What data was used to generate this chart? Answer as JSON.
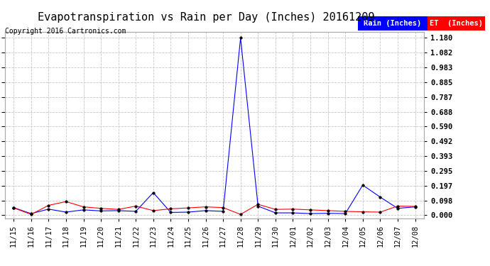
{
  "title": "Evapotranspiration vs Rain per Day (Inches) 20161209",
  "copyright": "Copyright 2016 Cartronics.com",
  "x_labels": [
    "11/15",
    "11/16",
    "11/17",
    "11/18",
    "11/19",
    "11/20",
    "11/21",
    "11/22",
    "11/23",
    "11/24",
    "11/25",
    "11/26",
    "11/27",
    "11/28",
    "11/29",
    "11/30",
    "12/01",
    "12/02",
    "12/03",
    "12/04",
    "12/05",
    "12/06",
    "12/07",
    "12/08"
  ],
  "rain_inches": [
    0.05,
    0.01,
    0.04,
    0.02,
    0.035,
    0.028,
    0.03,
    0.025,
    0.15,
    0.018,
    0.02,
    0.03,
    0.025,
    1.18,
    0.06,
    0.015,
    0.015,
    0.01,
    0.012,
    0.01,
    0.2,
    0.12,
    0.045,
    0.055
  ],
  "et_inches": [
    0.048,
    0.005,
    0.065,
    0.09,
    0.055,
    0.045,
    0.038,
    0.06,
    0.03,
    0.042,
    0.048,
    0.055,
    0.05,
    0.005,
    0.072,
    0.038,
    0.04,
    0.035,
    0.03,
    0.025,
    0.022,
    0.02,
    0.06,
    0.058
  ],
  "rain_color": "#0000ff",
  "et_color": "#ff0000",
  "bg_color": "#ffffff",
  "grid_color": "#c8c8c8",
  "yticks": [
    0.0,
    0.098,
    0.197,
    0.295,
    0.393,
    0.492,
    0.59,
    0.688,
    0.787,
    0.885,
    0.983,
    1.082,
    1.18
  ],
  "ylim": [
    -0.02,
    1.22
  ],
  "legend_rain_bg": "#0000ff",
  "legend_et_bg": "#ff0000",
  "legend_rain_text": "Rain (Inches)",
  "legend_et_text": "ET  (Inches)",
  "title_fontsize": 11,
  "copyright_fontsize": 7,
  "tick_fontsize": 7.5,
  "marker_size": 2.5
}
